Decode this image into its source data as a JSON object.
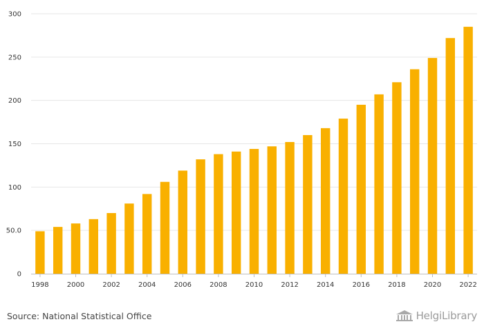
{
  "chart_data": {
    "type": "bar",
    "title": "",
    "xlabel": "",
    "ylabel": "",
    "categories": [
      "1998",
      "1999",
      "2000",
      "2001",
      "2002",
      "2003",
      "2004",
      "2005",
      "2006",
      "2007",
      "2008",
      "2009",
      "2010",
      "2011",
      "2012",
      "2013",
      "2014",
      "2015",
      "2016",
      "2017",
      "2018",
      "2019",
      "2020",
      "2021",
      "2022"
    ],
    "values": [
      49,
      54,
      58,
      63,
      70,
      81,
      92,
      106,
      119,
      132,
      138,
      141,
      144,
      147,
      152,
      160,
      168,
      179,
      195,
      207,
      221,
      236,
      249,
      272,
      285
    ],
    "x_tick_labels": [
      "1998",
      "2000",
      "2002",
      "2004",
      "2006",
      "2008",
      "2010",
      "2012",
      "2014",
      "2016",
      "2018",
      "2020",
      "2022"
    ],
    "y_ticks": [
      {
        "value": 0,
        "label": "0"
      },
      {
        "value": 50,
        "label": "50.0"
      },
      {
        "value": 100,
        "label": "100"
      },
      {
        "value": 150,
        "label": "150"
      },
      {
        "value": 200,
        "label": "200"
      },
      {
        "value": 250,
        "label": "250"
      },
      {
        "value": 300,
        "label": "300"
      }
    ],
    "ylim": [
      0,
      300
    ],
    "grid": true,
    "bar_color": "#f9b000"
  },
  "footer": {
    "source": "Source: National Statistical Office",
    "brand": "HelgiLibrary"
  }
}
